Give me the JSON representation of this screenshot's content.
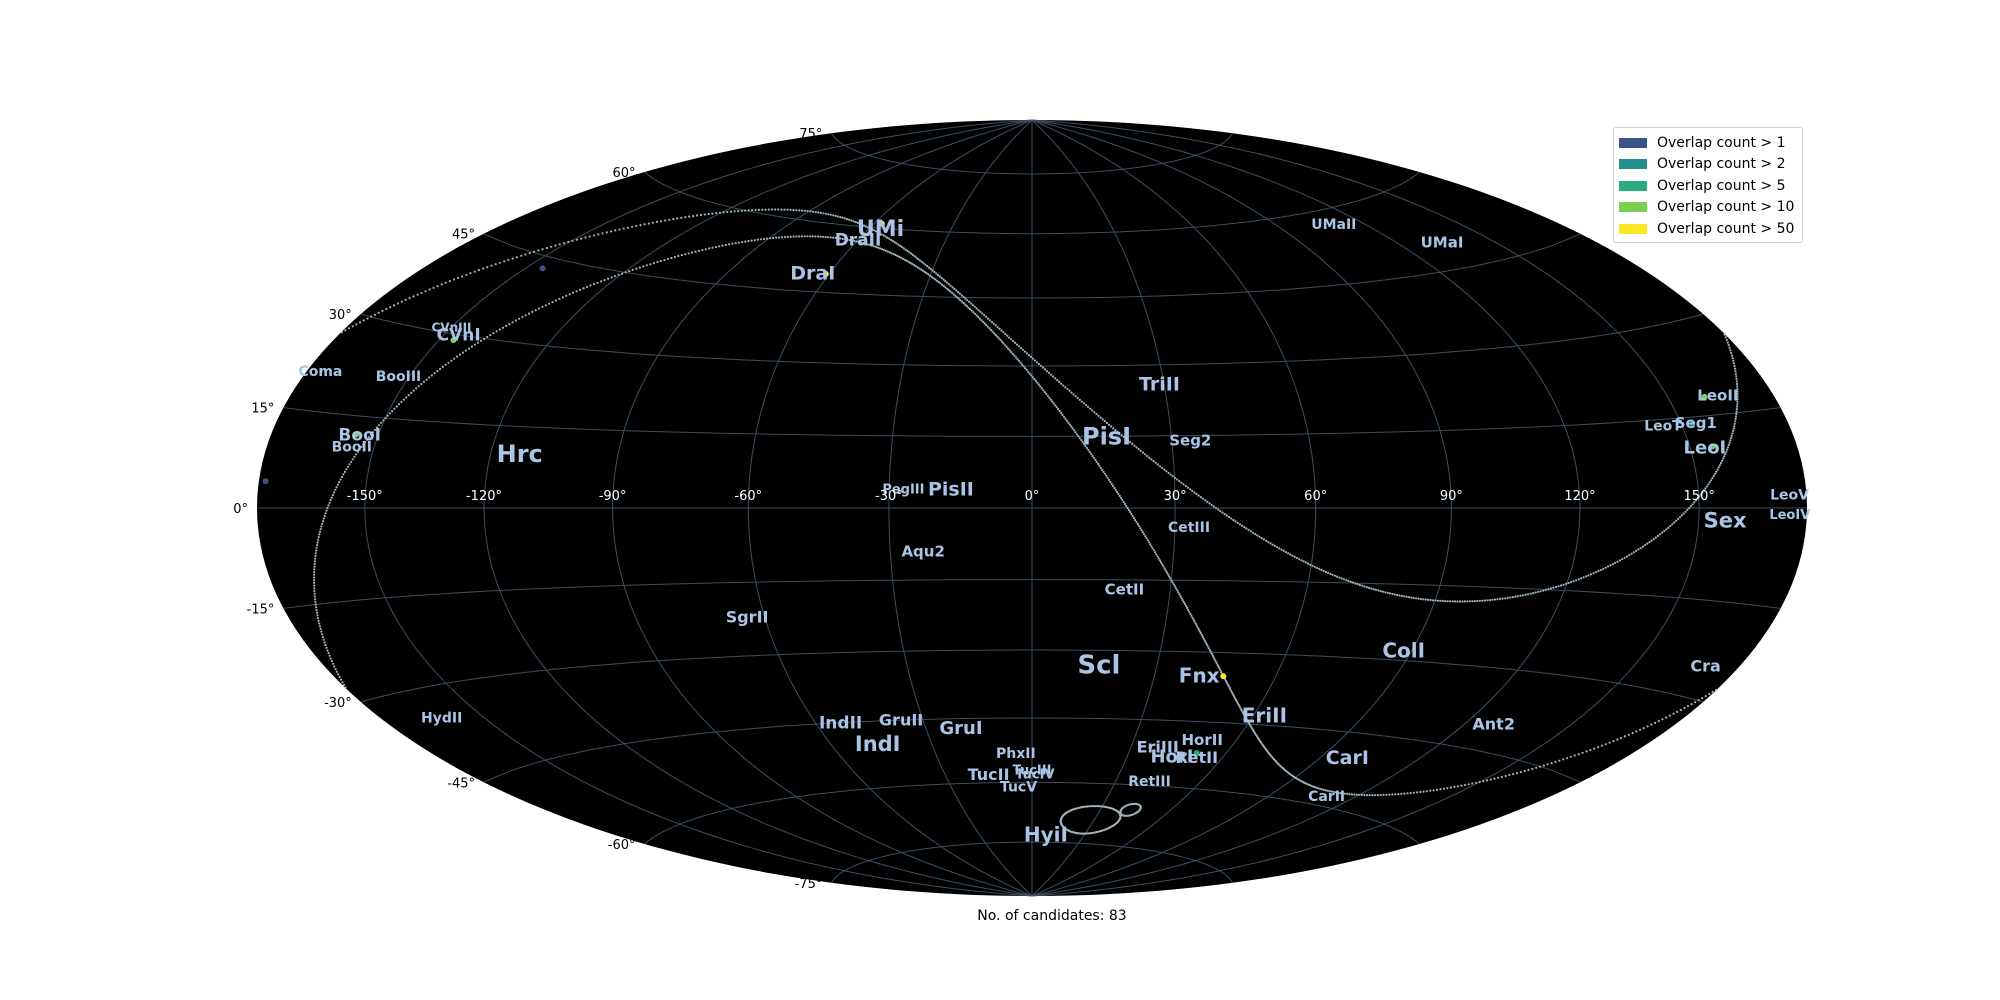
{
  "chart_data": {
    "type": "scatter",
    "projection": "hammer-aitoff",
    "background_color": "#000000",
    "grid": true,
    "grid_color": "#3e4e5e",
    "label_color": "#a9c4e4",
    "lon_ticks": [
      -150,
      -120,
      -90,
      -60,
      -30,
      0,
      30,
      60,
      90,
      120,
      150
    ],
    "lat_ticks": [
      -75,
      -60,
      -45,
      -30,
      -15,
      0,
      15,
      30,
      45,
      60,
      75
    ],
    "lon_tick_labels": [
      "-150°",
      "-120°",
      "-90°",
      "-60°",
      "-30°",
      "0°",
      "30°",
      "60°",
      "90°",
      "120°",
      "150°"
    ],
    "lat_tick_labels": [
      "-75°",
      "-60°",
      "-45°",
      "-30°",
      "-15°",
      "0°",
      "15°",
      "30°",
      "45°",
      "60°",
      "75°"
    ],
    "legend_position": "top-right",
    "legend": [
      {
        "label": "Overlap count > 1",
        "color": "#3b528b"
      },
      {
        "label": "Overlap count > 2",
        "color": "#21908c"
      },
      {
        "label": "Overlap count > 5",
        "color": "#27ad81"
      },
      {
        "label": "Overlap count > 10",
        "color": "#7ad151"
      },
      {
        "label": "Overlap count > 50",
        "color": "#fde725"
      }
    ],
    "galaxies": [
      {
        "name": "UMi",
        "lon": -56,
        "lat": 60,
        "size": 22
      },
      {
        "name": "DraII",
        "lon": -60,
        "lat": 57,
        "size": 17
      },
      {
        "name": "DraI",
        "lon": -65,
        "lat": 49,
        "size": 19
      },
      {
        "name": "UMaII",
        "lon": 110,
        "lat": 57,
        "size": 14
      },
      {
        "name": "UMaI",
        "lon": 134,
        "lat": 50,
        "size": 15
      },
      {
        "name": "CVnIII",
        "lon": -150,
        "lat": 31,
        "size": 12
      },
      {
        "name": "CVnI",
        "lon": -146,
        "lat": 30,
        "size": 17
      },
      {
        "name": "BooIII",
        "lon": -153,
        "lat": 22,
        "size": 14
      },
      {
        "name": "Coma",
        "lon": -176,
        "lat": 21,
        "size": 14
      },
      {
        "name": "TriII",
        "lon": 29,
        "lat": 26,
        "size": 19
      },
      {
        "name": "LeoII",
        "lon": 164,
        "lat": 18,
        "size": 15
      },
      {
        "name": "PisI",
        "lon": 16,
        "lat": 15,
        "size": 24
      },
      {
        "name": "Seg2",
        "lon": 34,
        "lat": 14,
        "size": 15
      },
      {
        "name": "LeoT",
        "lon": 145,
        "lat": 14,
        "size": 14
      },
      {
        "name": "Seg1",
        "lon": 154,
        "lat": 14,
        "size": 15
      },
      {
        "name": "BooI",
        "lon": -155,
        "lat": 12,
        "size": 17
      },
      {
        "name": "BooII",
        "lon": -156,
        "lat": 10,
        "size": 14
      },
      {
        "name": "Hrc",
        "lon": -113,
        "lat": 10,
        "size": 24
      },
      {
        "name": "LeoI",
        "lon": 154,
        "lat": 10,
        "size": 18
      },
      {
        "name": "PegIII",
        "lon": -27,
        "lat": 4,
        "size": 13
      },
      {
        "name": "PisII",
        "lon": -17,
        "lat": 4,
        "size": 19
      },
      {
        "name": "LeoV",
        "lon": 175,
        "lat": 2,
        "size": 14
      },
      {
        "name": "LeoIV",
        "lon": 175,
        "lat": -1,
        "size": 13
      },
      {
        "name": "Sex",
        "lon": 157,
        "lat": -2,
        "size": 21
      },
      {
        "name": "CetIII",
        "lon": 33,
        "lat": -4,
        "size": 14
      },
      {
        "name": "Aqu2",
        "lon": -23,
        "lat": -9,
        "size": 15
      },
      {
        "name": "CetII",
        "lon": 20,
        "lat": -17,
        "size": 15
      },
      {
        "name": "SgrII",
        "lon": -64,
        "lat": -22,
        "size": 16
      },
      {
        "name": "Cra",
        "lon": 170,
        "lat": -25,
        "size": 16
      },
      {
        "name": "ColI",
        "lon": 88,
        "lat": -28,
        "size": 20
      },
      {
        "name": "Scl",
        "lon": 16,
        "lat": -33,
        "size": 26
      },
      {
        "name": "Fnx",
        "lon": 41,
        "lat": -35,
        "size": 20
      },
      {
        "name": "HydII",
        "lon": -162,
        "lat": -35,
        "size": 14
      },
      {
        "name": "EriII",
        "lon": 63,
        "lat": -43,
        "size": 20
      },
      {
        "name": "Ant2",
        "lon": 128,
        "lat": -40,
        "size": 16
      },
      {
        "name": "IndII",
        "lon": -53,
        "lat": -45,
        "size": 17
      },
      {
        "name": "GruII",
        "lon": -36,
        "lat": -45,
        "size": 16
      },
      {
        "name": "GruI",
        "lon": -20,
        "lat": -47,
        "size": 18
      },
      {
        "name": "IndI",
        "lon": -46,
        "lat": -50,
        "size": 21
      },
      {
        "name": "EriIII",
        "lon": 38,
        "lat": -51,
        "size": 16
      },
      {
        "name": "HorII",
        "lon": 50,
        "lat": -49,
        "size": 15
      },
      {
        "name": "CarI",
        "lon": 98,
        "lat": -50,
        "size": 19
      },
      {
        "name": "PhxII",
        "lon": -5,
        "lat": -53,
        "size": 14
      },
      {
        "name": "HorI",
        "lon": 44,
        "lat": -53,
        "size": 18
      },
      {
        "name": "RetII",
        "lon": 52,
        "lat": -53,
        "size": 16
      },
      {
        "name": "TucIII",
        "lon": 0,
        "lat": -57,
        "size": 13
      },
      {
        "name": "TucII",
        "lon": -15,
        "lat": -58,
        "size": 16
      },
      {
        "name": "TucIV",
        "lon": 1,
        "lat": -58,
        "size": 13
      },
      {
        "name": "CarII",
        "lon": 110,
        "lat": -58,
        "size": 14
      },
      {
        "name": "TucV",
        "lon": -5,
        "lat": -61,
        "size": 14
      },
      {
        "name": "RetIII",
        "lon": 42,
        "lat": -59,
        "size": 14
      },
      {
        "name": "HyiI",
        "lon": 8,
        "lat": -73,
        "size": 20
      }
    ],
    "candidates": [
      {
        "lon": -57,
        "lat": 61,
        "color": "#fde725"
      },
      {
        "lon": -61,
        "lat": 49,
        "color": "#fde725"
      },
      {
        "lon": -146,
        "lat": 29,
        "color": "#7ad151"
      },
      {
        "lon": -156,
        "lat": 12,
        "color": "#7ad151"
      },
      {
        "lon": 47,
        "lat": -35,
        "color": "#fde725"
      },
      {
        "lon": 156,
        "lat": 10,
        "color": "#7ad151"
      },
      {
        "lon": 160,
        "lat": 18,
        "color": "#7ad151"
      },
      {
        "lon": 153,
        "lat": 14,
        "color": "#21908c"
      },
      {
        "lon": 51,
        "lat": -52,
        "color": "#27ad81"
      },
      {
        "lon": -145,
        "lat": 43,
        "color": "#3b528b"
      },
      {
        "lon": -178,
        "lat": 4,
        "color": "#3b528b"
      }
    ]
  },
  "caption": "No. of candidates: 83"
}
